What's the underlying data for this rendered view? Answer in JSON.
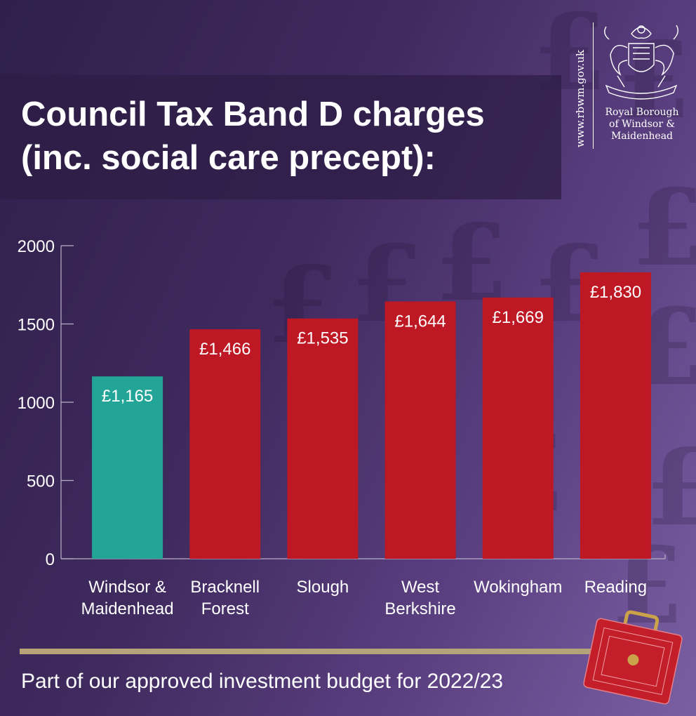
{
  "header": {
    "title_line1": "Council Tax Band D charges",
    "title_line2": "(inc. social care precept):"
  },
  "logo": {
    "url": "www.rbwm.gov.uk",
    "name_line1": "Royal Borough",
    "name_line2": "of Windsor &",
    "name_line3": "Maidenhead",
    "icon": "coat-of-arms-icon"
  },
  "footer": {
    "text": "Part of our approved investment budget for 2022/23",
    "icon": "red-budget-briefcase-icon"
  },
  "colors": {
    "background": "#3f2a5e",
    "highlight_bar": "#22a597",
    "bar": "#bd1823",
    "rule": "#b5a37a"
  },
  "chart_data": {
    "type": "bar",
    "title": "Council Tax Band D charges (inc. social care precept):",
    "categories": [
      [
        "Windsor &",
        "Maidenhead"
      ],
      [
        "Bracknell",
        "Forest"
      ],
      [
        "Slough"
      ],
      [
        "West",
        "Berkshire"
      ],
      [
        "Wokingham"
      ],
      [
        "Reading"
      ]
    ],
    "values": [
      1165,
      1466,
      1535,
      1644,
      1669,
      1830
    ],
    "value_labels": [
      "£1,165",
      "£1,466",
      "£1,535",
      "£1,644",
      "£1,669",
      "£1,830"
    ],
    "highlight_index": 0,
    "ylim": [
      0,
      2000
    ],
    "yticks": [
      0,
      500,
      1000,
      1500,
      2000
    ],
    "grid": false,
    "legend": "none"
  }
}
